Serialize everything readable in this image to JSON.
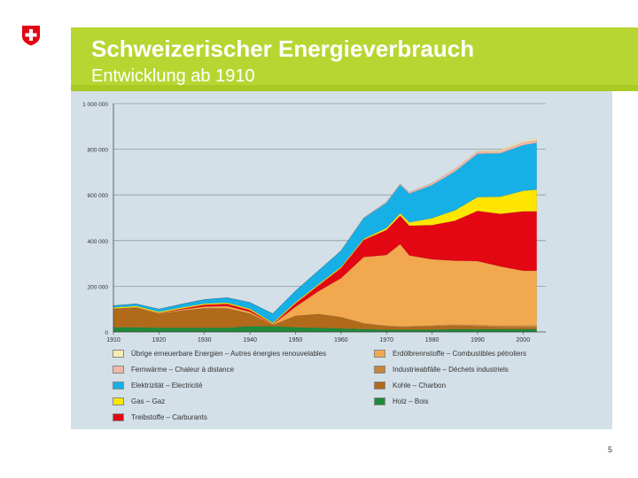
{
  "header": {
    "title": "Schweizerischer Energieverbrauch",
    "subtitle": "Entwicklung ab 1910"
  },
  "page_number": "5",
  "colors": {
    "banner": "#b8d632",
    "logo_red": "#e20613"
  },
  "chart_data": {
    "type": "area",
    "stacked": true,
    "title": "",
    "xlabel": "",
    "ylabel": "",
    "ylim": [
      0,
      1000000
    ],
    "y_ticks": [
      0,
      200000,
      400000,
      600000,
      800000,
      1000000
    ],
    "y_tick_labels": [
      "0",
      "200 000",
      "400 000",
      "600 000",
      "800 000",
      "1 000 000"
    ],
    "x_ticks": [
      1910,
      1920,
      1930,
      1940,
      1950,
      1960,
      1970,
      1980,
      1990,
      2000
    ],
    "x_tick_labels": [
      "1910",
      "1920",
      "1930",
      "1940",
      "1950",
      "1960",
      "1970",
      "1980",
      "1990",
      "2000"
    ],
    "x": [
      1910,
      1915,
      1920,
      1925,
      1930,
      1935,
      1940,
      1945,
      1950,
      1955,
      1960,
      1965,
      1970,
      1973,
      1975,
      1980,
      1985,
      1990,
      1995,
      2000,
      2003
    ],
    "series": [
      {
        "name": "Holz – Bois",
        "color": "#1e8a3a",
        "values": [
          20000,
          20000,
          18000,
          18000,
          18000,
          18000,
          25000,
          25000,
          20000,
          18000,
          15000,
          12000,
          10000,
          10000,
          10000,
          10000,
          12000,
          12000,
          12000,
          12000,
          12000
        ]
      },
      {
        "name": "Kohle – Charbon",
        "color": "#b06a1a",
        "values": [
          80000,
          85000,
          60000,
          75000,
          85000,
          85000,
          55000,
          5000,
          50000,
          60000,
          50000,
          25000,
          15000,
          12000,
          12000,
          15000,
          15000,
          12000,
          8000,
          8000,
          8000
        ]
      },
      {
        "name": "Industrieabfälle – Déchets industriels",
        "color": "#c9833a",
        "values": [
          0,
          0,
          0,
          0,
          0,
          0,
          0,
          0,
          0,
          0,
          0,
          1000,
          2000,
          2000,
          3000,
          3000,
          5000,
          6000,
          7000,
          8000,
          8000
        ]
      },
      {
        "name": "Erdölbrennstoffe – Combustibles pétroliers",
        "color": "#f2a84e",
        "values": [
          1000,
          2000,
          3000,
          5000,
          8000,
          10000,
          8000,
          3000,
          40000,
          100000,
          170000,
          290000,
          310000,
          360000,
          310000,
          290000,
          280000,
          280000,
          260000,
          240000,
          240000
        ]
      },
      {
        "name": "Treibstoffe – Carburants",
        "color": "#e30613",
        "values": [
          1000,
          1000,
          2000,
          4000,
          8000,
          10000,
          8000,
          2000,
          15000,
          25000,
          45000,
          75000,
          110000,
          125000,
          130000,
          150000,
          175000,
          220000,
          230000,
          260000,
          260000
        ]
      },
      {
        "name": "Gas – Gaz",
        "color": "#ffe600",
        "values": [
          5000,
          5000,
          5000,
          5000,
          5000,
          5000,
          5000,
          5000,
          5000,
          5000,
          5000,
          5000,
          8000,
          10000,
          15000,
          30000,
          45000,
          60000,
          75000,
          90000,
          95000
        ]
      },
      {
        "name": "Elektrizität – Electricité",
        "color": "#17b0e6",
        "values": [
          8000,
          10000,
          12000,
          15000,
          18000,
          22000,
          28000,
          40000,
          50000,
          60000,
          70000,
          90000,
          110000,
          125000,
          125000,
          145000,
          170000,
          190000,
          190000,
          200000,
          205000
        ]
      },
      {
        "name": "Fernwärme – Chaleur à distance",
        "color": "#f3b6a8",
        "values": [
          0,
          0,
          0,
          0,
          0,
          0,
          0,
          0,
          0,
          0,
          1000,
          2000,
          4000,
          5000,
          6000,
          8000,
          10000,
          10000,
          10000,
          12000,
          12000
        ]
      },
      {
        "name": "Übrige erneuerbare Energien – Autres énergies renouvelables",
        "color": "#f5ecb0",
        "values": [
          0,
          0,
          0,
          0,
          0,
          0,
          0,
          0,
          0,
          0,
          0,
          0,
          0,
          0,
          0,
          1000,
          2000,
          3000,
          5000,
          6000,
          8000
        ]
      }
    ]
  },
  "legend": {
    "items": [
      {
        "label": "Übrige erneuerbare Energien – Autres énergies renouvelables",
        "color": "#f5ecb0"
      },
      {
        "label": "Fernwärme – Chaleur à distance",
        "color": "#f3b6a8"
      },
      {
        "label": "Elektrizität – Electricité",
        "color": "#17b0e6"
      },
      {
        "label": "Gas – Gaz",
        "color": "#ffe600"
      },
      {
        "label": "Treibstoffe – Carburants",
        "color": "#e30613"
      },
      {
        "label": "Erdölbrennstoffe – Combustibles pétroliers",
        "color": "#f2a84e"
      },
      {
        "label": "Industrieabfälle – Déchets industriels",
        "color": "#c9833a"
      },
      {
        "label": "Kohle – Charbon",
        "color": "#b06a1a"
      },
      {
        "label": "Holz – Bois",
        "color": "#1e8a3a"
      }
    ]
  }
}
